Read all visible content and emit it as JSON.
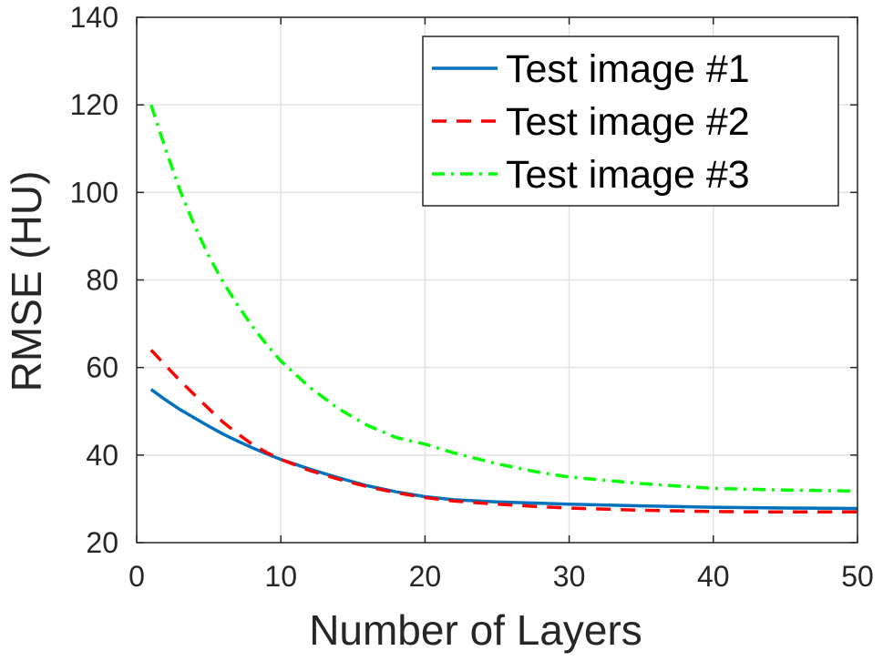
{
  "chart_data": {
    "type": "line",
    "title": "",
    "xlabel": "Number of Layers",
    "ylabel": "RMSE (HU)",
    "xlim": [
      0,
      50
    ],
    "ylim": [
      20,
      140
    ],
    "xticks": [
      0,
      10,
      20,
      30,
      40,
      50
    ],
    "yticks": [
      20,
      40,
      60,
      80,
      100,
      120,
      140
    ],
    "grid": true,
    "legend_position": "top-right",
    "x": [
      1,
      2,
      3,
      4,
      5,
      6,
      7,
      8,
      9,
      10,
      12,
      14,
      16,
      18,
      20,
      22,
      25,
      28,
      30,
      35,
      40,
      45,
      50
    ],
    "series": [
      {
        "name": "Test image #1",
        "color": "#0072BD",
        "line_style": "solid",
        "values": [
          55.0,
          52.6,
          50.4,
          48.5,
          46.6,
          44.8,
          43.2,
          41.7,
          40.3,
          39.0,
          36.8,
          34.8,
          33.0,
          31.6,
          30.5,
          29.8,
          29.3,
          29.0,
          28.8,
          28.4,
          28.1,
          27.9,
          27.8
        ]
      },
      {
        "name": "Test image #2",
        "color": "#FF0000",
        "line_style": "dashed",
        "values": [
          64.0,
          60.5,
          57.0,
          53.8,
          50.6,
          47.5,
          44.9,
          42.5,
          40.6,
          39.0,
          36.5,
          34.5,
          32.8,
          31.4,
          30.3,
          29.5,
          28.8,
          28.2,
          27.9,
          27.4,
          27.1,
          27.0,
          27.0
        ]
      },
      {
        "name": "Test image #3",
        "color": "#00FF00",
        "line_style": "dashdot",
        "values": [
          120.0,
          110.0,
          100.5,
          92.5,
          85.5,
          79.5,
          74.3,
          69.5,
          65.3,
          61.5,
          55.5,
          50.6,
          46.8,
          44.0,
          42.5,
          40.5,
          38.0,
          36.0,
          35.0,
          33.5,
          32.4,
          32.0,
          31.8
        ]
      }
    ]
  }
}
